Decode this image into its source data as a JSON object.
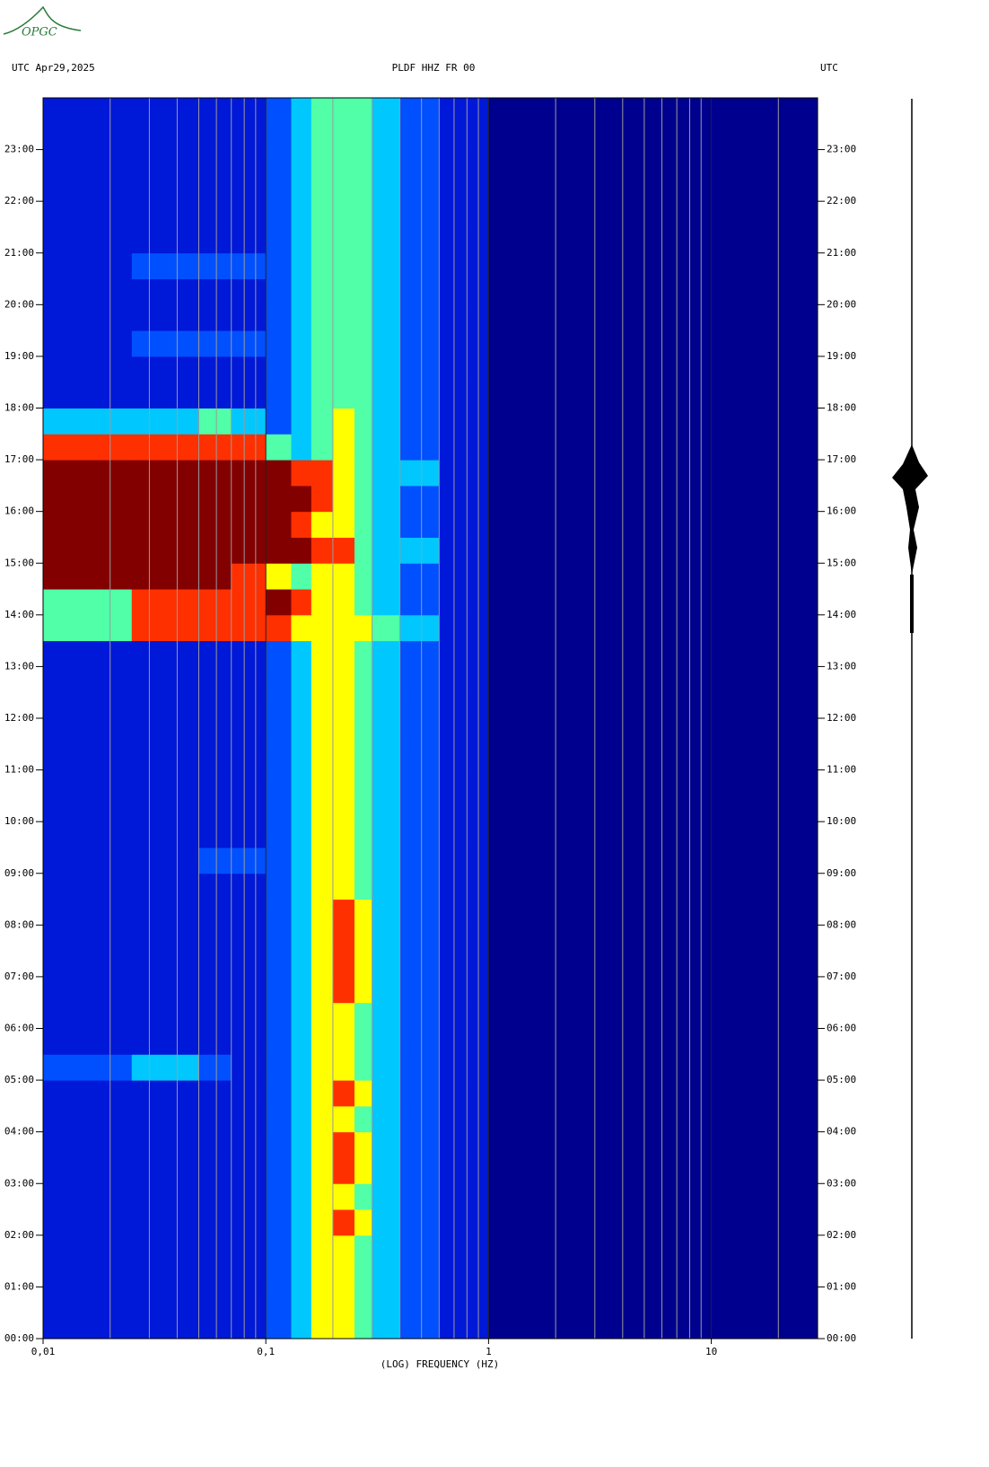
{
  "chart_data": {
    "type": "spectrogram",
    "logo": "OPGC",
    "title": "PLDF HHZ FR 00",
    "left_label": "UTC  Apr29,2025",
    "right_label": "UTC",
    "xlabel": "(LOG) FREQUENCY (HZ)",
    "xscale": "log",
    "xlim": [
      0.01,
      30
    ],
    "xticks": [
      {
        "value": 0.01,
        "label": "0,01"
      },
      {
        "value": 0.1,
        "label": "0,1"
      },
      1,
      10
    ],
    "xgrid": [
      0.02,
      0.03,
      0.04,
      0.05,
      0.06,
      0.07,
      0.08,
      0.09,
      0.2,
      0.3,
      0.4,
      0.5,
      0.6,
      0.7,
      0.8,
      0.9,
      2,
      3,
      4,
      5,
      6,
      7,
      8,
      9,
      20
    ],
    "ylim": [
      0,
      24
    ],
    "yticks": [
      {
        "value": 0,
        "label": "00:00"
      },
      {
        "value": 1,
        "label": "01:00"
      },
      {
        "value": 2,
        "label": "02:00"
      },
      {
        "value": 3,
        "label": "03:00"
      },
      {
        "value": 4,
        "label": "04:00"
      },
      {
        "value": 5,
        "label": "05:00"
      },
      {
        "value": 6,
        "label": "06:00"
      },
      {
        "value": 7,
        "label": "07:00"
      },
      {
        "value": 8,
        "label": "08:00"
      },
      {
        "value": 9,
        "label": "09:00"
      },
      {
        "value": 10,
        "label": "10:00"
      },
      {
        "value": 11,
        "label": "11:00"
      },
      {
        "value": 12,
        "label": "12:00"
      },
      {
        "value": 13,
        "label": "13:00"
      },
      {
        "value": 14,
        "label": "14:00"
      },
      {
        "value": 15,
        "label": "15:00"
      },
      {
        "value": 16,
        "label": "16:00"
      },
      {
        "value": 17,
        "label": "17:00"
      },
      {
        "value": 18,
        "label": "18:00"
      },
      {
        "value": 19,
        "label": "19:00"
      },
      {
        "value": 20,
        "label": "20:00"
      },
      {
        "value": 21,
        "label": "21:00"
      },
      {
        "value": 22,
        "label": "22:00"
      },
      {
        "value": 23,
        "label": "23:00"
      }
    ],
    "freq_bins": [
      0.01,
      0.025,
      0.05,
      0.07,
      0.1,
      0.13,
      0.16,
      0.2,
      0.25,
      0.3,
      0.4,
      0.6,
      1,
      3,
      30
    ],
    "time_bins": [
      0,
      0.5,
      1,
      1.5,
      2,
      2.5,
      3,
      3.5,
      4,
      4.5,
      5,
      5.5,
      6,
      6.5,
      7,
      7.5,
      8,
      8.5,
      9,
      9.5,
      10,
      10.5,
      11,
      11.5,
      12,
      12.5,
      13,
      13.5,
      14,
      14.5,
      15,
      15.5,
      16,
      16.5,
      17,
      17.5,
      18,
      18.5,
      19,
      19.5,
      20,
      20.5,
      21,
      21.5,
      22,
      22.5,
      23,
      23.5,
      24
    ],
    "colormap": [
      "#00008e",
      "#0018d8",
      "#0050ff",
      "#00c8ff",
      "#50ffa8",
      "#ffff00",
      "#ff3000",
      "#820000"
    ],
    "values": [
      [
        1,
        1,
        1,
        1,
        2,
        3,
        5,
        5,
        4,
        3,
        2,
        1,
        0,
        0
      ],
      [
        1,
        1,
        1,
        1,
        2,
        3,
        5,
        5,
        4,
        3,
        2,
        1,
        0,
        0
      ],
      [
        1,
        1,
        1,
        1,
        2,
        3,
        5,
        5,
        4,
        3,
        2,
        1,
        0,
        0
      ],
      [
        1,
        1,
        1,
        1,
        2,
        3,
        5,
        5,
        4,
        3,
        2,
        1,
        0,
        0
      ],
      [
        1,
        1,
        1,
        1,
        2,
        3,
        5,
        6,
        5,
        3,
        2,
        1,
        0,
        0
      ],
      [
        1,
        1,
        1,
        1,
        2,
        3,
        5,
        5,
        4,
        3,
        2,
        1,
        0,
        0
      ],
      [
        1,
        1,
        1,
        1,
        2,
        3,
        5,
        6,
        5,
        3,
        2,
        1,
        0,
        0
      ],
      [
        1,
        1,
        1,
        1,
        2,
        3,
        5,
        6,
        5,
        3,
        2,
        1,
        0,
        0
      ],
      [
        1,
        1,
        1,
        1,
        2,
        3,
        5,
        5,
        4,
        3,
        2,
        1,
        0,
        0
      ],
      [
        1,
        1,
        1,
        1,
        2,
        3,
        5,
        6,
        5,
        3,
        2,
        1,
        0,
        0
      ],
      [
        2,
        3,
        2,
        1,
        2,
        3,
        5,
        5,
        4,
        3,
        2,
        1,
        0,
        0
      ],
      [
        1,
        1,
        1,
        1,
        2,
        3,
        5,
        5,
        4,
        3,
        2,
        1,
        0,
        0
      ],
      [
        1,
        1,
        1,
        1,
        2,
        3,
        5,
        5,
        4,
        3,
        2,
        1,
        0,
        0
      ],
      [
        1,
        1,
        1,
        1,
        2,
        3,
        5,
        6,
        5,
        3,
        2,
        1,
        0,
        0
      ],
      [
        1,
        1,
        1,
        1,
        2,
        3,
        5,
        6,
        5,
        3,
        2,
        1,
        0,
        0
      ],
      [
        1,
        1,
        1,
        1,
        2,
        3,
        5,
        6,
        5,
        3,
        2,
        1,
        0,
        0
      ],
      [
        1,
        1,
        1,
        1,
        2,
        3,
        5,
        6,
        5,
        3,
        2,
        1,
        0,
        0
      ],
      [
        1,
        1,
        1,
        1,
        2,
        3,
        5,
        5,
        4,
        3,
        2,
        1,
        0,
        0
      ],
      [
        1,
        1,
        2,
        2,
        2,
        3,
        5,
        5,
        4,
        3,
        2,
        1,
        0,
        0
      ],
      [
        1,
        1,
        1,
        1,
        2,
        3,
        5,
        5,
        4,
        3,
        2,
        1,
        0,
        0
      ],
      [
        1,
        1,
        1,
        1,
        2,
        3,
        5,
        5,
        4,
        3,
        2,
        1,
        0,
        0
      ],
      [
        1,
        1,
        1,
        1,
        2,
        3,
        5,
        5,
        4,
        3,
        2,
        1,
        0,
        0
      ],
      [
        1,
        1,
        1,
        1,
        2,
        3,
        5,
        5,
        4,
        3,
        2,
        1,
        0,
        0
      ],
      [
        1,
        1,
        1,
        1,
        2,
        3,
        5,
        5,
        4,
        3,
        2,
        1,
        0,
        0
      ],
      [
        1,
        1,
        1,
        1,
        2,
        3,
        5,
        5,
        4,
        3,
        2,
        1,
        0,
        0
      ],
      [
        1,
        1,
        1,
        1,
        2,
        3,
        5,
        5,
        4,
        3,
        2,
        1,
        0,
        0
      ],
      [
        1,
        1,
        1,
        1,
        2,
        3,
        5,
        5,
        4,
        3,
        2,
        1,
        0,
        0
      ],
      [
        4,
        6,
        6,
        6,
        6,
        5,
        5,
        5,
        5,
        4,
        3,
        1,
        0,
        0
      ],
      [
        4,
        6,
        6,
        6,
        7,
        6,
        5,
        5,
        4,
        3,
        2,
        1,
        0,
        0
      ],
      [
        7,
        7,
        7,
        6,
        5,
        4,
        5,
        5,
        4,
        3,
        2,
        1,
        0,
        0
      ],
      [
        7,
        7,
        7,
        7,
        7,
        7,
        6,
        6,
        4,
        3,
        3,
        1,
        0,
        0
      ],
      [
        7,
        7,
        7,
        7,
        7,
        6,
        5,
        5,
        4,
        3,
        2,
        1,
        0,
        0
      ],
      [
        7,
        7,
        7,
        7,
        7,
        7,
        6,
        5,
        4,
        3,
        2,
        1,
        0,
        0
      ],
      [
        7,
        7,
        7,
        7,
        7,
        6,
        6,
        5,
        4,
        3,
        3,
        1,
        0,
        0
      ],
      [
        6,
        6,
        6,
        6,
        4,
        3,
        4,
        5,
        4,
        3,
        2,
        1,
        0,
        0
      ],
      [
        3,
        3,
        4,
        3,
        2,
        3,
        4,
        5,
        4,
        3,
        2,
        1,
        0,
        0
      ],
      [
        1,
        1,
        1,
        1,
        2,
        3,
        4,
        4,
        4,
        3,
        2,
        1,
        0,
        0
      ],
      [
        1,
        1,
        1,
        1,
        2,
        3,
        4,
        4,
        4,
        3,
        2,
        1,
        0,
        0
      ],
      [
        1,
        2,
        2,
        2,
        2,
        3,
        4,
        4,
        4,
        3,
        2,
        1,
        0,
        0
      ],
      [
        1,
        1,
        1,
        1,
        2,
        3,
        4,
        4,
        4,
        3,
        2,
        1,
        0,
        0
      ],
      [
        1,
        1,
        1,
        1,
        2,
        3,
        4,
        4,
        4,
        3,
        2,
        1,
        0,
        0
      ],
      [
        1,
        2,
        2,
        2,
        2,
        3,
        4,
        4,
        4,
        3,
        2,
        1,
        0,
        0
      ],
      [
        1,
        1,
        1,
        1,
        2,
        3,
        4,
        4,
        4,
        3,
        2,
        1,
        0,
        0
      ],
      [
        1,
        1,
        1,
        1,
        2,
        3,
        4,
        4,
        4,
        3,
        2,
        1,
        0,
        0
      ],
      [
        1,
        1,
        1,
        1,
        2,
        3,
        4,
        4,
        4,
        3,
        2,
        1,
        0,
        0
      ],
      [
        1,
        1,
        1,
        1,
        2,
        3,
        4,
        4,
        4,
        3,
        2,
        1,
        0,
        0
      ],
      [
        1,
        1,
        1,
        1,
        2,
        3,
        4,
        4,
        4,
        3,
        2,
        1,
        0,
        0
      ],
      [
        1,
        1,
        1,
        1,
        2,
        3,
        4,
        4,
        4,
        3,
        2,
        1,
        0,
        0
      ]
    ]
  }
}
